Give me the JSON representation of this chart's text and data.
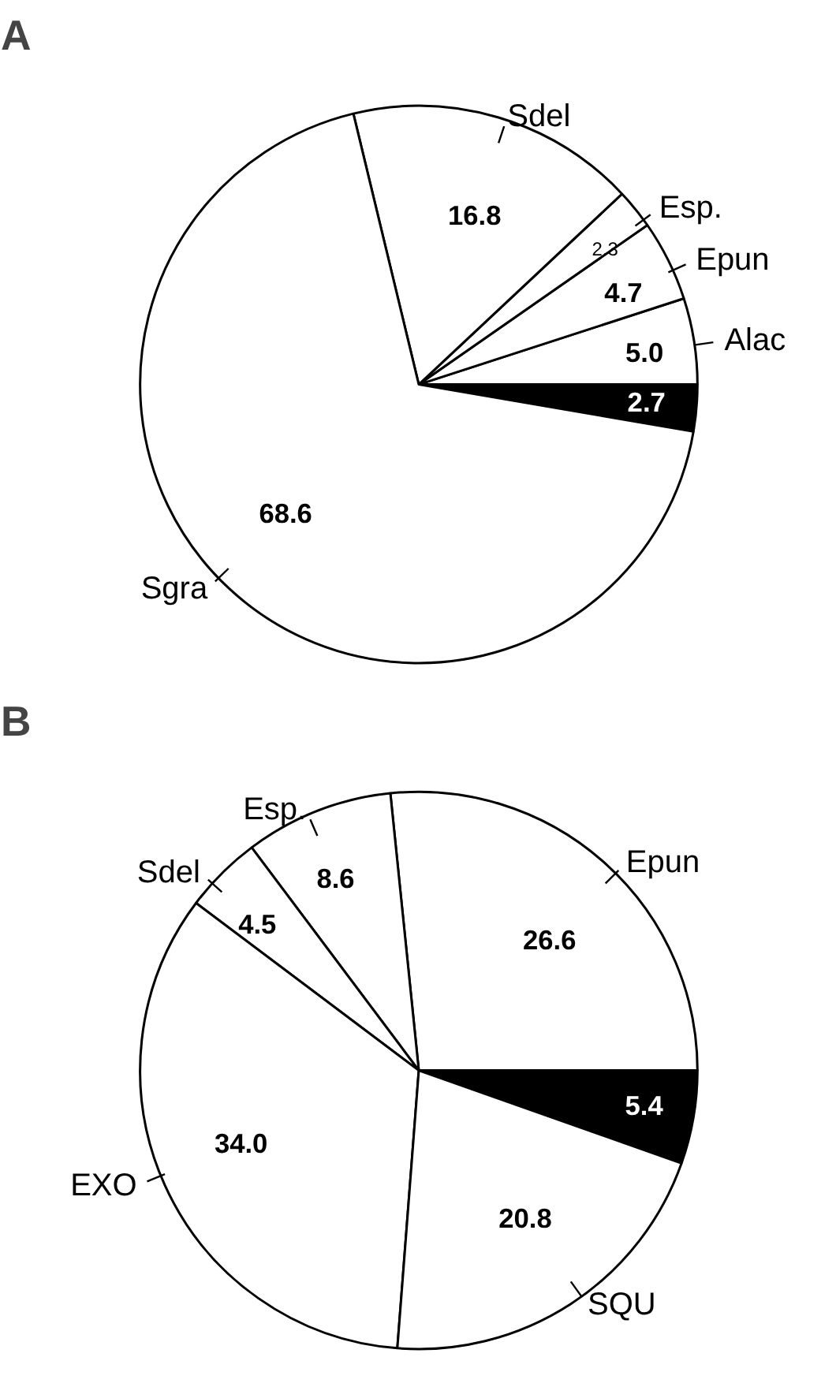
{
  "chart_data": [
    {
      "type": "pie",
      "title": "A",
      "categories": [
        null,
        "Alac",
        "Epun",
        "Esp.",
        "Sdel",
        "Sgra"
      ],
      "values": [
        2.7,
        5.0,
        4.7,
        2.3,
        16.8,
        68.6
      ],
      "colors": [
        "#000000",
        "#ffffff",
        "#ffffff",
        "#ffffff",
        "#ffffff",
        "#ffffff"
      ],
      "value_labels": [
        "2.7",
        "5.0",
        "4.7",
        "2.3",
        "16.8",
        "68.6"
      ]
    },
    {
      "type": "pie",
      "title": "B",
      "categories": [
        null,
        "Epun",
        "Esp.",
        "Sdel",
        "EXO",
        "SQU"
      ],
      "values": [
        5.4,
        26.6,
        8.6,
        4.5,
        34.0,
        20.8
      ],
      "colors": [
        "#000000",
        "#ffffff",
        "#ffffff",
        "#ffffff",
        "#ffffff",
        "#ffffff"
      ],
      "value_labels": [
        "5.4",
        "26.6",
        "8.6",
        "4.5",
        "34.0",
        "20.8"
      ]
    }
  ]
}
